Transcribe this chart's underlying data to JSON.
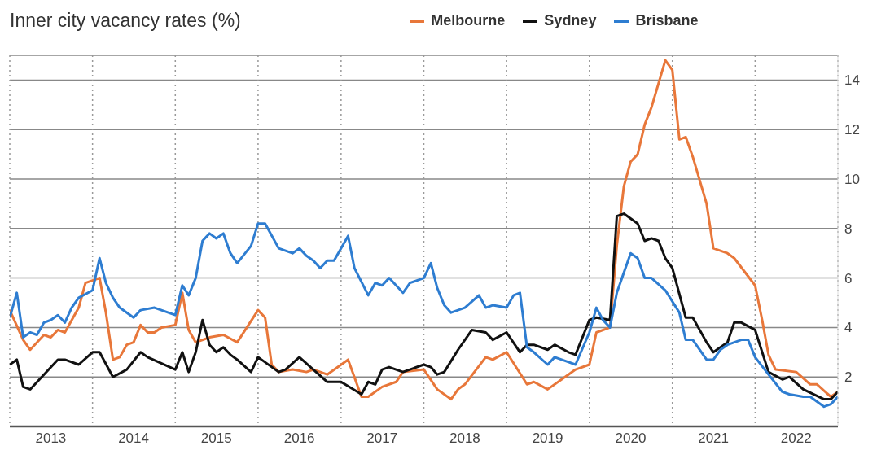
{
  "chart_data": {
    "type": "line",
    "title": "Inner city vacancy rates (%)",
    "xlim": [
      "2013-01",
      "2023-01"
    ],
    "xticks": [
      {
        "value": "2013-01",
        "label": null
      },
      {
        "value": "2013-07",
        "label": "2013"
      },
      {
        "value": "2014-01",
        "label": null
      },
      {
        "value": "2014-07",
        "label": "2014"
      },
      {
        "value": "2015-01",
        "label": null
      },
      {
        "value": "2015-07",
        "label": "2015"
      },
      {
        "value": "2016-01",
        "label": null
      },
      {
        "value": "2016-07",
        "label": "2016"
      },
      {
        "value": "2017-01",
        "label": null
      },
      {
        "value": "2017-07",
        "label": "2017"
      },
      {
        "value": "2018-01",
        "label": null
      },
      {
        "value": "2018-07",
        "label": "2018"
      },
      {
        "value": "2019-01",
        "label": null
      },
      {
        "value": "2019-07",
        "label": "2019"
      },
      {
        "value": "2020-01",
        "label": null
      },
      {
        "value": "2020-07",
        "label": "2020"
      },
      {
        "value": "2021-01",
        "label": null
      },
      {
        "value": "2021-07",
        "label": "2021"
      },
      {
        "value": "2022-01",
        "label": null
      },
      {
        "value": "2022-07",
        "label": "2022"
      },
      {
        "value": "2023-01",
        "label": null
      }
    ],
    "ylim": [
      0,
      15
    ],
    "yticks": [
      2,
      4,
      6,
      8,
      10,
      12,
      14
    ],
    "grid": true,
    "legend": "top",
    "marker": "none",
    "line_style": "solid",
    "series": [
      {
        "name": "Melbourne",
        "color": "#e8773a",
        "x": [
          "2013-01",
          "2013-03",
          "2013-04",
          "2013-06",
          "2013-07",
          "2013-08",
          "2013-09",
          "2013-11",
          "2013-12",
          "2014-02",
          "2014-03",
          "2014-04",
          "2014-05",
          "2014-06",
          "2014-07",
          "2014-08",
          "2014-09",
          "2014-10",
          "2014-11",
          "2015-01",
          "2015-02",
          "2015-03",
          "2015-04",
          "2015-06",
          "2015-08",
          "2015-10",
          "2016-01",
          "2016-02",
          "2016-03",
          "2016-04",
          "2016-06",
          "2016-08",
          "2016-09",
          "2016-11",
          "2017-02",
          "2017-04",
          "2017-05",
          "2017-07",
          "2017-09",
          "2017-10",
          "2018-01",
          "2018-03",
          "2018-05",
          "2018-06",
          "2018-07",
          "2018-10",
          "2018-11",
          "2019-01",
          "2019-04",
          "2019-05",
          "2019-07",
          "2019-10",
          "2019-11",
          "2020-01",
          "2020-02",
          "2020-04",
          "2020-05",
          "2020-06",
          "2020-07",
          "2020-08",
          "2020-09",
          "2020-10",
          "2020-12",
          "2021-01",
          "2021-02",
          "2021-03",
          "2021-04",
          "2021-06",
          "2021-07",
          "2021-09",
          "2021-10",
          "2022-01",
          "2022-02",
          "2022-03",
          "2022-04",
          "2022-07",
          "2022-09",
          "2022-10",
          "2022-12",
          "2023-01"
        ],
        "values": [
          4.7,
          3.5,
          3.1,
          3.7,
          3.6,
          3.9,
          3.8,
          4.8,
          5.8,
          6.0,
          4.6,
          2.7,
          2.8,
          3.3,
          3.4,
          4.1,
          3.8,
          3.8,
          4.0,
          4.1,
          5.4,
          3.9,
          3.4,
          3.6,
          3.7,
          3.4,
          4.7,
          4.4,
          2.5,
          2.2,
          2.3,
          2.2,
          2.3,
          2.1,
          2.7,
          1.2,
          1.2,
          1.6,
          1.8,
          2.2,
          2.3,
          1.5,
          1.1,
          1.5,
          1.7,
          2.8,
          2.7,
          3.0,
          1.7,
          1.8,
          1.5,
          2.1,
          2.3,
          2.5,
          3.8,
          4.0,
          7.3,
          9.7,
          10.7,
          11.0,
          12.2,
          12.9,
          14.8,
          14.4,
          11.6,
          11.7,
          10.9,
          9.0,
          7.2,
          7.0,
          6.8,
          5.7,
          4.3,
          2.9,
          2.3,
          2.2,
          1.7,
          1.7,
          1.2,
          1.4
        ]
      },
      {
        "name": "Sydney",
        "color": "#111111",
        "x": [
          "2013-01",
          "2013-02",
          "2013-03",
          "2013-04",
          "2013-08",
          "2013-09",
          "2013-11",
          "2014-01",
          "2014-02",
          "2014-04",
          "2014-06",
          "2014-08",
          "2014-09",
          "2015-01",
          "2015-02",
          "2015-03",
          "2015-04",
          "2015-05",
          "2015-06",
          "2015-07",
          "2015-08",
          "2015-09",
          "2015-10",
          "2015-12",
          "2016-01",
          "2016-04",
          "2016-05",
          "2016-07",
          "2016-11",
          "2017-01",
          "2017-04",
          "2017-05",
          "2017-06",
          "2017-07",
          "2017-08",
          "2017-10",
          "2018-01",
          "2018-02",
          "2018-03",
          "2018-04",
          "2018-06",
          "2018-08",
          "2018-10",
          "2018-11",
          "2019-01",
          "2019-03",
          "2019-04",
          "2019-05",
          "2019-07",
          "2019-08",
          "2019-10",
          "2019-11",
          "2020-01",
          "2020-02",
          "2020-04",
          "2020-05",
          "2020-06",
          "2020-08",
          "2020-09",
          "2020-10",
          "2020-11",
          "2020-12",
          "2021-01",
          "2021-03",
          "2021-04",
          "2021-06",
          "2021-07",
          "2021-09",
          "2021-10",
          "2021-11",
          "2022-01",
          "2022-03",
          "2022-05",
          "2022-06",
          "2022-08",
          "2022-11",
          "2022-12",
          "2023-01"
        ],
        "values": [
          2.5,
          2.7,
          1.6,
          1.5,
          2.7,
          2.7,
          2.5,
          3.0,
          3.0,
          2.0,
          2.3,
          3.0,
          2.8,
          2.3,
          3.0,
          2.2,
          3.0,
          4.3,
          3.3,
          3.0,
          3.2,
          2.9,
          2.7,
          2.2,
          2.8,
          2.2,
          2.3,
          2.8,
          1.8,
          1.8,
          1.3,
          1.8,
          1.7,
          2.3,
          2.4,
          2.2,
          2.5,
          2.4,
          2.1,
          2.2,
          3.1,
          3.9,
          3.8,
          3.5,
          3.8,
          3.0,
          3.3,
          3.3,
          3.1,
          3.3,
          3.0,
          2.9,
          4.3,
          4.4,
          4.3,
          8.5,
          8.6,
          8.2,
          7.5,
          7.6,
          7.5,
          6.8,
          6.4,
          4.4,
          4.4,
          3.4,
          3.0,
          3.4,
          4.2,
          4.2,
          3.9,
          2.2,
          1.9,
          2.0,
          1.5,
          1.1,
          1.1,
          1.4
        ]
      },
      {
        "name": "Brisbane",
        "color": "#2e7dd1",
        "x": [
          "2013-01",
          "2013-02",
          "2013-03",
          "2013-04",
          "2013-05",
          "2013-06",
          "2013-07",
          "2013-08",
          "2013-09",
          "2013-10",
          "2013-11",
          "2014-01",
          "2014-02",
          "2014-03",
          "2014-04",
          "2014-05",
          "2014-07",
          "2014-08",
          "2014-10",
          "2015-01",
          "2015-02",
          "2015-03",
          "2015-04",
          "2015-05",
          "2015-06",
          "2015-07",
          "2015-08",
          "2015-09",
          "2015-10",
          "2015-12",
          "2016-01",
          "2016-02",
          "2016-04",
          "2016-06",
          "2016-07",
          "2016-08",
          "2016-09",
          "2016-10",
          "2016-11",
          "2016-12",
          "2017-02",
          "2017-03",
          "2017-05",
          "2017-06",
          "2017-07",
          "2017-08",
          "2017-10",
          "2017-11",
          "2018-01",
          "2018-02",
          "2018-03",
          "2018-04",
          "2018-05",
          "2018-07",
          "2018-09",
          "2018-10",
          "2018-11",
          "2019-01",
          "2019-02",
          "2019-03",
          "2019-04",
          "2019-05",
          "2019-07",
          "2019-08",
          "2019-10",
          "2019-11",
          "2020-01",
          "2020-02",
          "2020-03",
          "2020-04",
          "2020-05",
          "2020-07",
          "2020-08",
          "2020-09",
          "2020-10",
          "2020-12",
          "2021-02",
          "2021-03",
          "2021-04",
          "2021-06",
          "2021-07",
          "2021-08",
          "2021-09",
          "2021-11",
          "2021-12",
          "2022-01",
          "2022-03",
          "2022-05",
          "2022-06",
          "2022-08",
          "2022-09",
          "2022-11",
          "2022-12",
          "2023-01"
        ],
        "values": [
          4.4,
          5.4,
          3.6,
          3.8,
          3.7,
          4.2,
          4.3,
          4.5,
          4.2,
          4.8,
          5.2,
          5.5,
          6.8,
          5.8,
          5.2,
          4.8,
          4.4,
          4.7,
          4.8,
          4.5,
          5.7,
          5.3,
          6.0,
          7.5,
          7.8,
          7.6,
          7.8,
          7.0,
          6.6,
          7.3,
          8.2,
          8.2,
          7.2,
          7.0,
          7.2,
          6.9,
          6.7,
          6.4,
          6.7,
          6.7,
          7.7,
          6.4,
          5.3,
          5.8,
          5.7,
          6.0,
          5.4,
          5.8,
          6.0,
          6.6,
          5.6,
          4.9,
          4.6,
          4.8,
          5.3,
          4.8,
          4.9,
          4.8,
          5.3,
          5.4,
          3.2,
          3.0,
          2.5,
          2.8,
          2.6,
          2.5,
          3.8,
          4.8,
          4.3,
          4.0,
          5.4,
          7.0,
          6.8,
          6.0,
          6.0,
          5.5,
          4.6,
          3.5,
          3.5,
          2.7,
          2.7,
          3.1,
          3.3,
          3.5,
          3.5,
          2.8,
          2.1,
          1.4,
          1.3,
          1.2,
          1.2,
          0.8,
          0.9,
          1.2
        ]
      }
    ]
  }
}
